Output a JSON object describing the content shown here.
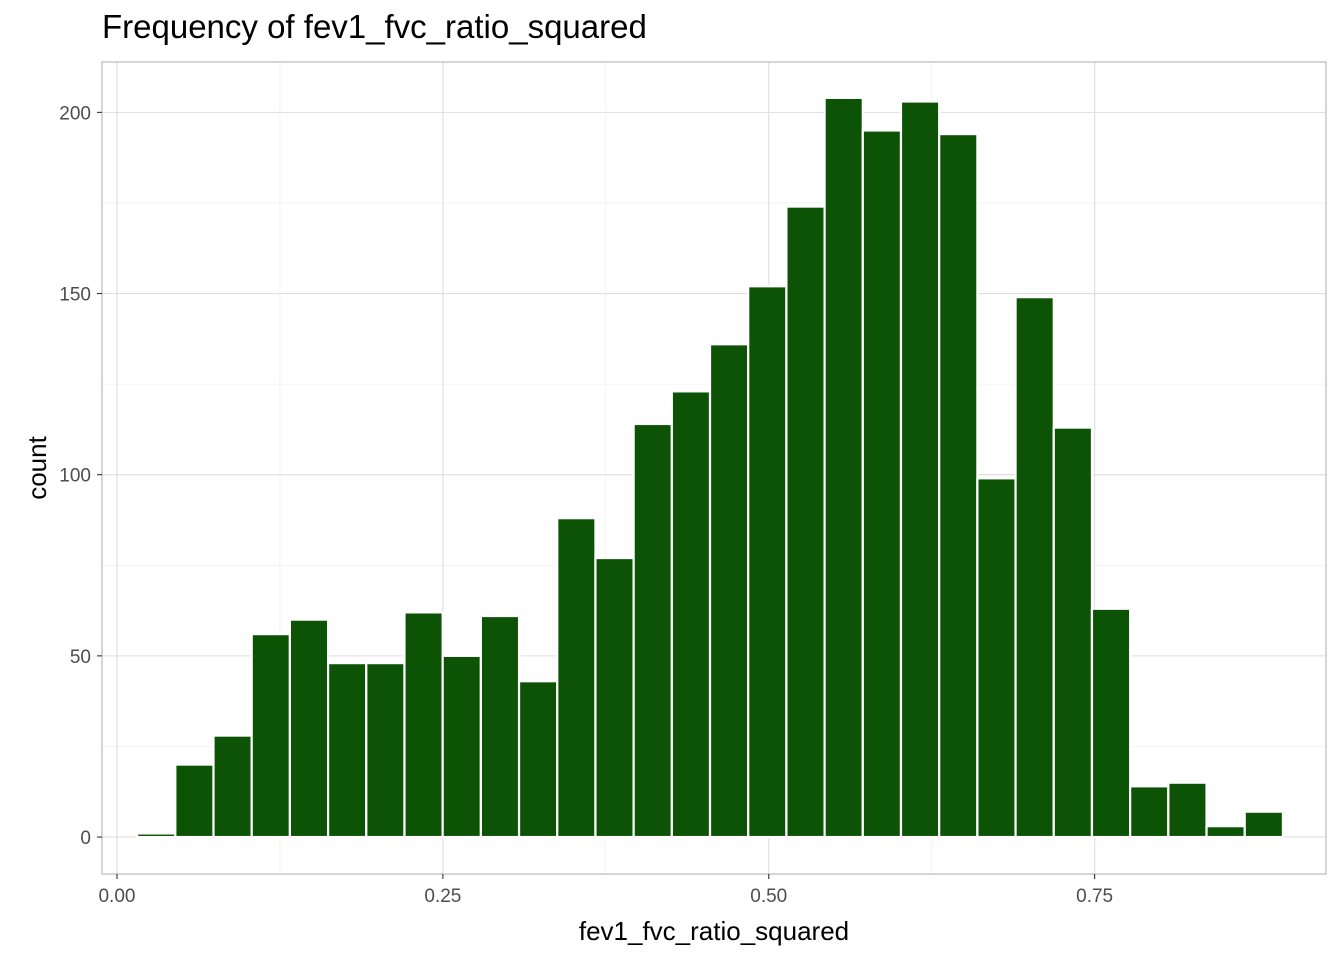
{
  "chart_data": {
    "type": "histogram",
    "title": "Frequency of fev1_fvc_ratio_squared",
    "xlabel": "fev1_fvc_ratio_squared",
    "ylabel": "count",
    "xlim": [
      -0.0115,
      0.9275
    ],
    "ylim": [
      -10.2,
      213.9
    ],
    "x_ticks": [
      0.0,
      0.25,
      0.5,
      0.75
    ],
    "x_tick_labels": [
      "0.00",
      "0.25",
      "0.50",
      "0.75"
    ],
    "y_ticks": [
      0,
      50,
      100,
      150,
      200
    ],
    "y_tick_labels": [
      "0",
      "50",
      "100",
      "150",
      "200"
    ],
    "bin_width": 0.0293,
    "bin_centers": [
      0.0301,
      0.0594,
      0.0887,
      0.118,
      0.1473,
      0.1766,
      0.2059,
      0.2352,
      0.2645,
      0.2938,
      0.3231,
      0.3524,
      0.3817,
      0.411,
      0.4403,
      0.4696,
      0.4989,
      0.5282,
      0.5575,
      0.5868,
      0.6161,
      0.6454,
      0.6747,
      0.704,
      0.7333,
      0.7626,
      0.7919,
      0.8212,
      0.8505,
      0.8798
    ],
    "values": [
      1,
      20,
      28,
      56,
      60,
      48,
      48,
      62,
      50,
      61,
      43,
      88,
      77,
      114,
      123,
      136,
      152,
      174,
      204,
      195,
      203,
      194,
      99,
      149,
      113,
      63,
      14,
      15,
      3,
      7
    ],
    "bar_color": "#0c5306",
    "bar_edge_color": "#ffffff",
    "grid": true,
    "theme": "light",
    "legend": "none"
  }
}
